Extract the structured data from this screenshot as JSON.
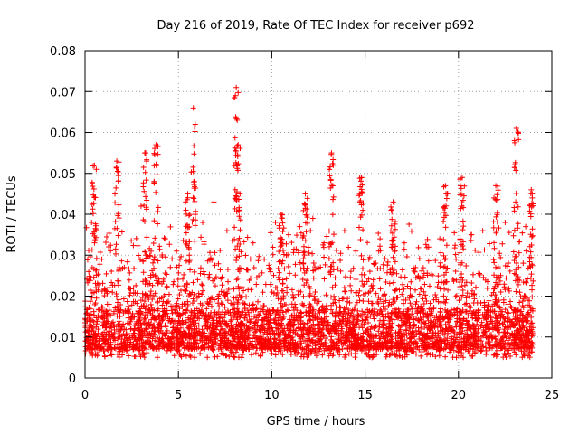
{
  "chart_data": {
    "type": "scatter",
    "title": "Day 216 of 2019, Rate Of TEC Index for receiver p692",
    "xlabel": "GPS time / hours",
    "ylabel": "ROTI / TECUs",
    "xlim": [
      0,
      25
    ],
    "ylim": [
      0,
      0.08
    ],
    "xticks": [
      0,
      5,
      10,
      15,
      20,
      25
    ],
    "xtick_labels": [
      "0",
      "5",
      "10",
      "15",
      "20",
      "25"
    ],
    "yticks": [
      0,
      0.01,
      0.02,
      0.03,
      0.04,
      0.05,
      0.06,
      0.07,
      0.08
    ],
    "ytick_labels": [
      "0",
      "0.01",
      "0.02",
      "0.03",
      "0.04",
      "0.05",
      "0.06",
      "0.07",
      "0.08"
    ],
    "grid": true,
    "marker": "+",
    "marker_color": "#ff0000",
    "data_x_range": [
      0,
      24
    ],
    "baseline_band": [
      0.003,
      0.035
    ],
    "peaks": [
      {
        "x": 0.5,
        "y": 0.052
      },
      {
        "x": 1.7,
        "y": 0.053
      },
      {
        "x": 3.2,
        "y": 0.055
      },
      {
        "x": 3.8,
        "y": 0.057
      },
      {
        "x": 5.5,
        "y": 0.045
      },
      {
        "x": 5.8,
        "y": 0.066
      },
      {
        "x": 8.1,
        "y": 0.071
      },
      {
        "x": 8.2,
        "y": 0.057
      },
      {
        "x": 10.5,
        "y": 0.04
      },
      {
        "x": 11.8,
        "y": 0.045
      },
      {
        "x": 13.2,
        "y": 0.055
      },
      {
        "x": 14.8,
        "y": 0.049
      },
      {
        "x": 16.5,
        "y": 0.043
      },
      {
        "x": 19.3,
        "y": 0.047
      },
      {
        "x": 20.2,
        "y": 0.049
      },
      {
        "x": 22.0,
        "y": 0.047
      },
      {
        "x": 23.1,
        "y": 0.061
      },
      {
        "x": 23.9,
        "y": 0.046
      }
    ],
    "sample_points": [
      {
        "x": 0.05,
        "y": 0.009
      },
      {
        "x": 0.2,
        "y": 0.026
      },
      {
        "x": 0.35,
        "y": 0.038
      },
      {
        "x": 0.6,
        "y": 0.051
      },
      {
        "x": 0.9,
        "y": 0.029
      },
      {
        "x": 1.2,
        "y": 0.018
      },
      {
        "x": 1.6,
        "y": 0.045
      },
      {
        "x": 2.1,
        "y": 0.027
      },
      {
        "x": 2.6,
        "y": 0.022
      },
      {
        "x": 3.0,
        "y": 0.042
      },
      {
        "x": 3.3,
        "y": 0.053
      },
      {
        "x": 3.7,
        "y": 0.048
      },
      {
        "x": 4.3,
        "y": 0.034
      },
      {
        "x": 4.9,
        "y": 0.031
      },
      {
        "x": 5.4,
        "y": 0.041
      },
      {
        "x": 5.9,
        "y": 0.062
      },
      {
        "x": 6.3,
        "y": 0.038
      },
      {
        "x": 6.9,
        "y": 0.043
      },
      {
        "x": 7.6,
        "y": 0.036
      },
      {
        "x": 8.05,
        "y": 0.069
      },
      {
        "x": 8.15,
        "y": 0.063
      },
      {
        "x": 8.3,
        "y": 0.045
      },
      {
        "x": 9.0,
        "y": 0.033
      },
      {
        "x": 9.6,
        "y": 0.029
      },
      {
        "x": 10.2,
        "y": 0.038
      },
      {
        "x": 10.9,
        "y": 0.035
      },
      {
        "x": 11.5,
        "y": 0.037
      },
      {
        "x": 12.2,
        "y": 0.039
      },
      {
        "x": 12.8,
        "y": 0.033
      },
      {
        "x": 13.3,
        "y": 0.052
      },
      {
        "x": 13.9,
        "y": 0.036
      },
      {
        "x": 14.5,
        "y": 0.031
      },
      {
        "x": 15.2,
        "y": 0.029
      },
      {
        "x": 15.8,
        "y": 0.034
      },
      {
        "x": 16.4,
        "y": 0.041
      },
      {
        "x": 17.1,
        "y": 0.033
      },
      {
        "x": 17.7,
        "y": 0.027
      },
      {
        "x": 18.4,
        "y": 0.032
      },
      {
        "x": 19.0,
        "y": 0.034
      },
      {
        "x": 19.4,
        "y": 0.045
      },
      {
        "x": 20.1,
        "y": 0.047
      },
      {
        "x": 20.7,
        "y": 0.035
      },
      {
        "x": 21.3,
        "y": 0.036
      },
      {
        "x": 21.9,
        "y": 0.044
      },
      {
        "x": 22.5,
        "y": 0.038
      },
      {
        "x": 23.0,
        "y": 0.058
      },
      {
        "x": 23.2,
        "y": 0.06
      },
      {
        "x": 23.6,
        "y": 0.037
      },
      {
        "x": 23.95,
        "y": 0.045
      }
    ]
  }
}
